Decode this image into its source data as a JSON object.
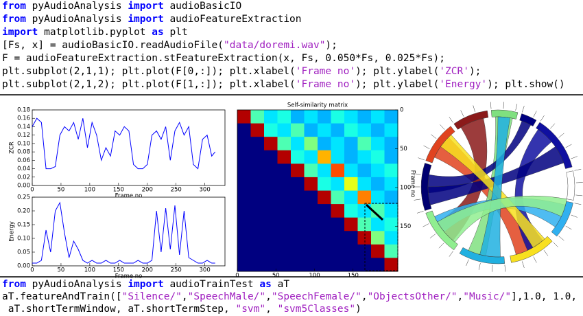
{
  "code_top": {
    "lines": [
      "from pyAudioAnalysis import audioBasicIO",
      "from pyAudioAnalysis import audioFeatureExtraction",
      "import matplotlib.pyplot as plt",
      "[Fs, x] = audioBasicIO.readAudioFile(\"data/doremi.wav\");",
      "F = audioFeatureExtraction.stFeatureExtraction(x, Fs, 0.050*Fs, 0.025*Fs);",
      "plt.subplot(2,1,1); plt.plot(F[0,:]); plt.xlabel('Frame no'); plt.ylabel('ZCR');",
      "plt.subplot(2,1,2); plt.plot(F[1,:]); plt.xlabel('Frame no'); plt.ylabel('Energy'); plt.show()"
    ]
  },
  "code_bottom": {
    "lines": [
      "from pyAudioAnalysis import audioTrainTest as aT",
      "aT.featureAndTrain([\"Silence/\",\"SpeechMale/\",\"SpeechFemale/\",\"ObjectsOther/\",\"Music/\"],1.0, 1.0,",
      " aT.shortTermWindow, aT.shortTermStep, \"svm\", \"svm5Classes\")"
    ]
  },
  "chart_data": [
    {
      "type": "line",
      "xlabel": "Frame no",
      "ylabel": "ZCR",
      "color": "#0000ff",
      "x": [
        0,
        8,
        16,
        24,
        32,
        40,
        48,
        56,
        64,
        72,
        80,
        88,
        96,
        104,
        112,
        120,
        128,
        136,
        144,
        152,
        160,
        168,
        176,
        184,
        192,
        200,
        208,
        216,
        224,
        232,
        240,
        248,
        256,
        264,
        272,
        280,
        288,
        296,
        304,
        312,
        318
      ],
      "values": [
        0.14,
        0.16,
        0.15,
        0.04,
        0.04,
        0.045,
        0.12,
        0.14,
        0.13,
        0.15,
        0.11,
        0.16,
        0.09,
        0.15,
        0.12,
        0.06,
        0.09,
        0.07,
        0.13,
        0.12,
        0.14,
        0.13,
        0.05,
        0.04,
        0.04,
        0.05,
        0.12,
        0.13,
        0.11,
        0.14,
        0.06,
        0.13,
        0.15,
        0.12,
        0.14,
        0.05,
        0.04,
        0.11,
        0.12,
        0.07,
        0.08
      ],
      "xlim": [
        0,
        335
      ],
      "xticks": [
        0,
        50,
        100,
        150,
        200,
        250,
        300
      ],
      "ylim": [
        0,
        0.18
      ],
      "yticks": [
        {
          "value": 0,
          "label": "0.00"
        },
        {
          "value": 0.02,
          "label": "0.02"
        },
        {
          "value": 0.04,
          "label": "0.04"
        },
        {
          "value": 0.06,
          "label": "0.06"
        },
        {
          "value": 0.08,
          "label": "0.08"
        },
        {
          "value": 0.1,
          "label": "0.10"
        },
        {
          "value": 0.12,
          "label": "0.12"
        },
        {
          "value": 0.14,
          "label": "0.14"
        },
        {
          "value": 0.16,
          "label": "0.16"
        },
        {
          "value": 0.18,
          "label": "0.18"
        }
      ]
    },
    {
      "type": "line",
      "xlabel": "Frame no",
      "ylabel": "Energy",
      "color": "#0000ff",
      "x": [
        0,
        8,
        16,
        24,
        32,
        40,
        48,
        56,
        64,
        72,
        80,
        88,
        96,
        104,
        112,
        120,
        128,
        136,
        144,
        152,
        160,
        168,
        176,
        184,
        192,
        200,
        208,
        216,
        224,
        232,
        240,
        248,
        256,
        264,
        272,
        280,
        288,
        296,
        304,
        312,
        318
      ],
      "values": [
        0.01,
        0.01,
        0.02,
        0.13,
        0.05,
        0.2,
        0.23,
        0.12,
        0.03,
        0.09,
        0.06,
        0.02,
        0.01,
        0.02,
        0.01,
        0.01,
        0.02,
        0.01,
        0.01,
        0.02,
        0.01,
        0.01,
        0.01,
        0.02,
        0.01,
        0.01,
        0.02,
        0.2,
        0.05,
        0.21,
        0.06,
        0.22,
        0.04,
        0.2,
        0.03,
        0.02,
        0.01,
        0.01,
        0.02,
        0.01,
        0.01
      ],
      "xlim": [
        0,
        335
      ],
      "xticks": [
        0,
        50,
        100,
        150,
        200,
        250,
        300
      ],
      "ylim": [
        0,
        0.25
      ],
      "yticks": [
        {
          "value": 0,
          "label": "0.00"
        },
        {
          "value": 0.05,
          "label": "0.05"
        },
        {
          "value": 0.1,
          "label": "0.10"
        },
        {
          "value": 0.15,
          "label": "0.15"
        },
        {
          "value": 0.2,
          "label": "0.20"
        },
        {
          "value": 0.25,
          "label": "0.25"
        }
      ]
    },
    {
      "type": "heatmap",
      "title": "Self-similarity matrix",
      "ylabel": "Frame no",
      "xlim": [
        0,
        208
      ],
      "ylim": [
        0,
        208
      ],
      "xticks": [
        0,
        50,
        100,
        150
      ],
      "yticks": [
        0,
        50,
        100,
        150
      ],
      "z": [
        [
          0.95,
          0.45,
          0.35,
          0.4,
          0.3,
          0.35,
          0.3,
          0.4,
          0.35,
          0.3,
          0.35,
          0.3
        ],
        [
          0,
          0.95,
          0.4,
          0.35,
          0.45,
          0.3,
          0.35,
          0.3,
          0.4,
          0.35,
          0.3,
          0.35
        ],
        [
          0,
          0,
          0.95,
          0.45,
          0.35,
          0.5,
          0.3,
          0.35,
          0.3,
          0.45,
          0.35,
          0.3
        ],
        [
          0,
          0,
          0,
          0.95,
          0.4,
          0.35,
          0.7,
          0.35,
          0.3,
          0.35,
          0.4,
          0.3
        ],
        [
          0,
          0,
          0,
          0,
          0.95,
          0.45,
          0.35,
          0.8,
          0.35,
          0.3,
          0.35,
          0.4
        ],
        [
          0,
          0,
          0,
          0,
          0,
          0.95,
          0.4,
          0.35,
          0.6,
          0.35,
          0.3,
          0.35
        ],
        [
          0,
          0,
          0,
          0,
          0,
          0,
          0.95,
          0.45,
          0.35,
          0.75,
          0.35,
          0.3
        ],
        [
          0,
          0,
          0,
          0,
          0,
          0,
          0,
          0.95,
          0.4,
          0.35,
          0.45,
          0.35
        ],
        [
          0,
          0,
          0,
          0,
          0,
          0,
          0,
          0,
          0.95,
          0.45,
          0.35,
          0.4
        ],
        [
          0,
          0,
          0,
          0,
          0,
          0,
          0,
          0,
          0,
          0.95,
          0.5,
          0.35
        ],
        [
          0,
          0,
          0,
          0,
          0,
          0,
          0,
          0,
          0,
          0,
          0.95,
          0.45
        ],
        [
          0,
          0,
          0,
          0,
          0,
          0,
          0,
          0,
          0,
          0,
          0,
          0.95
        ]
      ]
    }
  ]
}
